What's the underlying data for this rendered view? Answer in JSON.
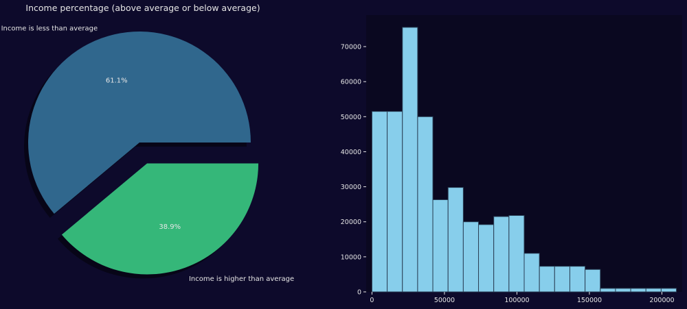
{
  "colors": {
    "background": "#0d0a2b",
    "text": "#e6e6e6",
    "pie_less": "#30678d",
    "pie_more": "#35b779",
    "hist_bar": "#87ceeb",
    "hist_edge": "#2a3f55",
    "axis_frame": "#0a0820"
  },
  "chart_data": [
    {
      "type": "pie",
      "title": "Income percentage (above average or below average)",
      "labels": [
        "Income is less than average",
        "Income is higher than average"
      ],
      "values": [
        61.1,
        38.9
      ],
      "value_labels": [
        "61.1%",
        "38.9%"
      ],
      "explode": [
        0,
        0.2
      ],
      "shadow": true,
      "start_angle_deg": 0
    },
    {
      "type": "bar",
      "subtype": "histogram",
      "title": "",
      "xlabel": "",
      "ylabel": "",
      "bin_edges": [
        0,
        10500,
        21000,
        31500,
        42000,
        52500,
        63000,
        73500,
        84000,
        94500,
        105000,
        115500,
        126000,
        136500,
        147000,
        157500,
        168000,
        178500,
        189000,
        199500,
        210000
      ],
      "values": [
        51500,
        51500,
        75500,
        50000,
        26300,
        29800,
        20000,
        19200,
        21500,
        21800,
        11000,
        7300,
        7300,
        7300,
        6400,
        1000,
        1000,
        1000,
        1000,
        1000
      ],
      "xlim": [
        -4000,
        214000
      ],
      "ylim": [
        0,
        79000
      ],
      "xticks": [
        0,
        50000,
        100000,
        150000,
        200000
      ],
      "xtick_labels": [
        "0",
        "50000",
        "100000",
        "150000",
        "200000"
      ],
      "yticks": [
        0,
        10000,
        20000,
        30000,
        40000,
        50000,
        60000,
        70000
      ],
      "ytick_labels": [
        "0",
        "10000",
        "20000",
        "30000",
        "40000",
        "50000",
        "60000",
        "70000"
      ],
      "grid": false
    }
  ]
}
